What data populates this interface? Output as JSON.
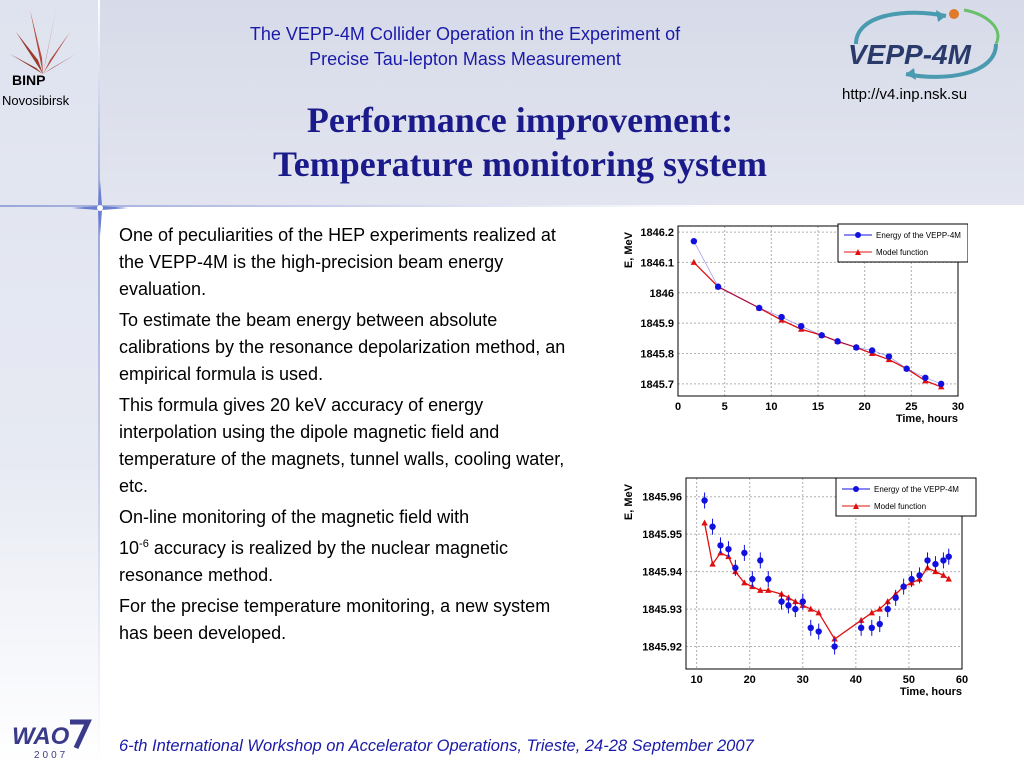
{
  "header": {
    "org_abbr": "BINP",
    "org_city": "Novosibirsk",
    "conference_title_line1": "The VEPP-4M Collider Operation in the Experiment of",
    "conference_title_line2": "Precise Tau-lepton Mass Measurement",
    "collider_logo_text": "VEPP-4M",
    "url": "http://v4.inp.nsk.su"
  },
  "slide": {
    "title_line1": "Performance improvement:",
    "title_line2": "Temperature monitoring system"
  },
  "body": {
    "p1": "One of peculiarities of the HEP experiments realized at the VEPP-4M is the high-precision beam energy evaluation.",
    "p2": "To estimate the beam energy between absolute calibrations by the resonance depolarization method, an empirical formula is used.",
    "p3": "This formula gives 20 keV accuracy of energy interpolation using the dipole magnetic field and temperature of the magnets, tunnel walls, cooling water, etc.",
    "p4_line1": "On-line monitoring of the magnetic field with",
    "p4_base": "10",
    "p4_exp": "-6",
    "p4_rest": " accuracy is realized by the nuclear magnetic resonance method.",
    "p5": "For the precise temperature monitoring, a new system has been developed."
  },
  "footer": {
    "text": "6-th International Workshop on Accelerator Operations, Trieste, 24-28 September 2007",
    "logo_text": "WAO",
    "logo_year": "2007"
  },
  "colors": {
    "title": "#1a1a8a",
    "header_text": "#1a1aa8",
    "energy_series": "#1010e0",
    "model_series": "#e01010"
  },
  "chart_data": [
    {
      "type": "line",
      "xlabel": "Time, hours",
      "ylabel": "E, MeV",
      "xlim": [
        0,
        30
      ],
      "ylim": [
        1845.66,
        1846.22
      ],
      "xticks": [
        0,
        5,
        10,
        15,
        20,
        25,
        30
      ],
      "yticks": [
        1845.7,
        1845.8,
        1845.9,
        1846,
        1846.1,
        1846.2
      ],
      "ytick_labels": [
        "1845.7",
        "1845.8",
        "1845.9",
        "1846",
        "1846.1",
        "1846.2"
      ],
      "grid": true,
      "legend_position": "top-right",
      "series": [
        {
          "name": "Energy of the VEPP-4M",
          "x": [
            1.7,
            4.3,
            8.7,
            11.1,
            13.2,
            15.4,
            17.1,
            19.1,
            20.8,
            22.6,
            24.5,
            26.5,
            28.2
          ],
          "y": [
            1846.17,
            1846.02,
            1845.95,
            1845.92,
            1845.89,
            1845.86,
            1845.84,
            1845.82,
            1845.81,
            1845.79,
            1845.75,
            1845.72,
            1845.7
          ]
        },
        {
          "name": "Model function",
          "x": [
            1.7,
            4.3,
            8.7,
            11.1,
            13.2,
            15.4,
            17.1,
            19.1,
            20.8,
            22.6,
            24.5,
            26.5,
            28.2
          ],
          "y": [
            1846.1,
            1846.02,
            1845.95,
            1845.91,
            1845.88,
            1845.86,
            1845.84,
            1845.82,
            1845.8,
            1845.78,
            1845.75,
            1845.71,
            1845.69
          ]
        }
      ]
    },
    {
      "type": "line",
      "xlabel": "Time, hours",
      "ylabel": "E, MeV",
      "xlim": [
        8,
        60
      ],
      "ylim": [
        1845.914,
        1845.965
      ],
      "xticks": [
        10,
        20,
        30,
        40,
        50,
        60
      ],
      "yticks": [
        1845.92,
        1845.93,
        1845.94,
        1845.95,
        1845.96
      ],
      "ytick_labels": [
        "1845.92",
        "1845.93",
        "1845.94",
        "1845.95",
        "1845.96"
      ],
      "grid": true,
      "legend_position": "top-right",
      "series": [
        {
          "name": "Energy of the VEPP-4M",
          "x": [
            11.5,
            13,
            14.5,
            16,
            17.3,
            19,
            20.5,
            22,
            23.5,
            26,
            27.3,
            28.6,
            30,
            31.5,
            33,
            36,
            41,
            43,
            44.5,
            46,
            47.5,
            49,
            50.5,
            52,
            53.5,
            55,
            56.5,
            57.5
          ],
          "y": [
            1845.959,
            1845.952,
            1845.947,
            1845.946,
            1845.941,
            1845.945,
            1845.938,
            1845.943,
            1845.938,
            1845.932,
            1845.931,
            1845.93,
            1845.932,
            1845.925,
            1845.924,
            1845.92,
            1845.925,
            1845.925,
            1845.926,
            1845.93,
            1845.933,
            1845.936,
            1845.938,
            1845.939,
            1845.943,
            1845.942,
            1845.943,
            1845.944
          ]
        },
        {
          "name": "Model function",
          "x": [
            11.5,
            13,
            14.5,
            16,
            17.3,
            19,
            20.5,
            22,
            23.5,
            26,
            27.3,
            28.6,
            30,
            31.5,
            33,
            36,
            41,
            43,
            44.5,
            46,
            47.5,
            49,
            50.5,
            52,
            53.5,
            55,
            56.5,
            57.5
          ],
          "y": [
            1845.953,
            1845.942,
            1845.945,
            1845.944,
            1845.94,
            1845.937,
            1845.936,
            1845.935,
            1845.935,
            1845.934,
            1845.933,
            1845.932,
            1845.931,
            1845.93,
            1845.929,
            1845.922,
            1845.927,
            1845.929,
            1845.93,
            1845.932,
            1845.934,
            1845.936,
            1845.937,
            1845.938,
            1845.941,
            1845.94,
            1845.939,
            1845.938
          ]
        }
      ]
    }
  ]
}
